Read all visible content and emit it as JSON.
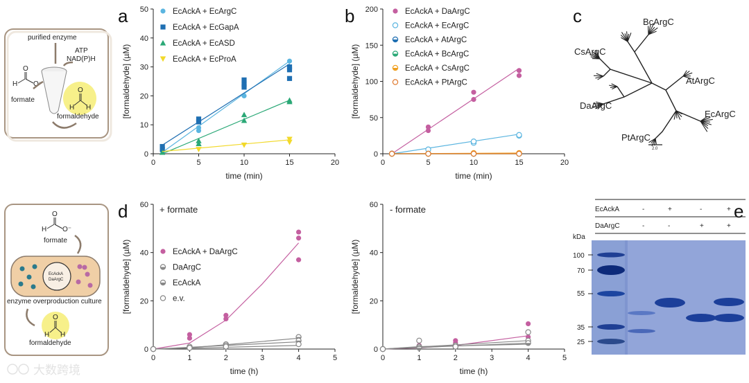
{
  "panels": {
    "a": {
      "letter": "a",
      "ylabel": "[formaldehyde] (µM)",
      "xlabel": "time (min)",
      "xticks": [
        "0",
        "5",
        "10",
        "15",
        "20"
      ],
      "yticks": [
        "0",
        "10",
        "20",
        "30",
        "40",
        "50"
      ]
    },
    "b": {
      "letter": "b",
      "ylabel": "[formaldehyde] (µM)",
      "xlabel": "time (min)",
      "xticks": [
        "0",
        "5",
        "10",
        "15",
        "20"
      ],
      "yticks": [
        "0",
        "50",
        "100",
        "150",
        "200"
      ]
    },
    "c": {
      "letter": "c",
      "labels": [
        "BcArgC",
        "CsArgC",
        "AtArgC",
        "DaArgC",
        "EcArgC",
        "PtArgC"
      ],
      "scale": "2.0"
    },
    "d": {
      "letter": "d",
      "ylabel": "[formaldehyde] (µM)",
      "xlabel": "time (h)",
      "xticks": [
        "0",
        "1",
        "2",
        "3",
        "4",
        "5"
      ],
      "yticks": [
        "0",
        "20",
        "40",
        "60"
      ],
      "cond_left": "+ formate",
      "cond_right": "- formate"
    },
    "e": {
      "letter": "e",
      "row1": "EcAckA",
      "row2": "DaArgC",
      "row1_signs": [
        "-",
        "+",
        "-",
        "+"
      ],
      "row2_signs": [
        "-",
        "-",
        "+",
        "+"
      ],
      "kda": "kDa",
      "markers": [
        "100",
        "70",
        "55",
        "35",
        "25"
      ]
    }
  },
  "schematic_top": {
    "purified_enzyme": "purified enzyme",
    "atp": "ATP",
    "nadph": "NAD(P)H",
    "formate": "formate",
    "formaldehyde": "formaldehyde"
  },
  "schematic_bottom": {
    "formate": "formate",
    "culture": "enzyme overproduction culture",
    "formaldehyde": "formaldehyde",
    "plasmid1": "EcAckA",
    "plasmid2": "DaArgC"
  },
  "watermark": "大数跨境",
  "chart_data": [
    {
      "type": "scatter",
      "panel": "a",
      "xlabel": "time (min)",
      "ylabel": "[formaldehyde] (µM)",
      "xlim": [
        0,
        20
      ],
      "ylim": [
        0,
        50
      ],
      "series": [
        {
          "name": "EcAckA + EcArgC",
          "color": "#5bb5e0",
          "marker": "circle",
          "x": [
            1,
            1,
            5,
            5,
            10,
            10,
            15,
            15
          ],
          "y": [
            1,
            2,
            8,
            9,
            20,
            24,
            30,
            32
          ],
          "fit": [
            [
              1,
              0.5
            ],
            [
              15,
              32
            ]
          ]
        },
        {
          "name": "EcAckA + EcGapA",
          "color": "#1f6fb2",
          "marker": "square",
          "x": [
            1,
            1,
            5,
            5,
            10,
            10,
            10,
            15,
            15,
            15
          ],
          "y": [
            1.5,
            2.5,
            11,
            12,
            23,
            24,
            25.5,
            26,
            29,
            30
          ],
          "fit": [
            [
              1,
              3
            ],
            [
              15,
              31
            ]
          ]
        },
        {
          "name": "EcAckA + EcASD",
          "color": "#2aa876",
          "marker": "triangle-up",
          "x": [
            1,
            5,
            5,
            10,
            10,
            15,
            15
          ],
          "y": [
            0.5,
            3.5,
            4.5,
            11.5,
            13.5,
            18,
            18.5
          ],
          "fit": [
            [
              1,
              0
            ],
            [
              15,
              18.5
            ]
          ]
        },
        {
          "name": "EcAckA + EcProA",
          "color": "#f2d92a",
          "marker": "triangle-down",
          "x": [
            5,
            10,
            15,
            15
          ],
          "y": [
            1.5,
            3,
            4,
            5
          ],
          "fit": [
            [
              1,
              0.8
            ],
            [
              15,
              4.8
            ]
          ]
        }
      ]
    },
    {
      "type": "scatter",
      "panel": "b",
      "xlabel": "time (min)",
      "ylabel": "[formaldehyde] (µM)",
      "xlim": [
        0,
        20
      ],
      "ylim": [
        0,
        200
      ],
      "series": [
        {
          "name": "EcAckA + DaArgC",
          "color": "#c45fa0",
          "marker": "circle-filled",
          "x": [
            1,
            5,
            5,
            10,
            10,
            15,
            15
          ],
          "y": [
            1,
            32,
            37,
            75,
            85,
            108,
            115
          ],
          "fit": [
            [
              1,
              0
            ],
            [
              15,
              118
            ]
          ]
        },
        {
          "name": "EcAckA + EcArgC",
          "color": "#5bb5e0",
          "marker": "circle-open",
          "x": [
            1,
            5,
            10,
            10,
            15,
            15
          ],
          "y": [
            0,
            6,
            15,
            17,
            25,
            26
          ],
          "fit": [
            [
              1,
              0
            ],
            [
              15,
              27
            ]
          ]
        },
        {
          "name": "EcAckA + AtArgC",
          "color": "#1f6fb2",
          "marker": "circle-half",
          "x": [
            1,
            5,
            10,
            15
          ],
          "y": [
            0,
            0,
            0,
            0
          ],
          "fit": [
            [
              1,
              0
            ],
            [
              15,
              0
            ]
          ]
        },
        {
          "name": "EcAckA + BcArgC",
          "color": "#2aa876",
          "marker": "circle-half",
          "x": [
            1,
            5,
            10,
            15
          ],
          "y": [
            0,
            0,
            0,
            0
          ],
          "fit": [
            [
              1,
              0
            ],
            [
              15,
              0
            ]
          ]
        },
        {
          "name": "EcAckA + CsArgC",
          "color": "#f0a020",
          "marker": "circle-half",
          "x": [
            1,
            5,
            10,
            15
          ],
          "y": [
            0,
            0,
            1,
            1
          ],
          "fit": [
            [
              1,
              0
            ],
            [
              15,
              1
            ]
          ]
        },
        {
          "name": "EcAckA + PtArgC",
          "color": "#e07a30",
          "marker": "circle-open",
          "x": [
            1,
            5,
            10,
            15
          ],
          "y": [
            0,
            0,
            0,
            0
          ],
          "fit": [
            [
              1,
              0
            ],
            [
              15,
              0
            ]
          ]
        }
      ]
    },
    {
      "type": "scatter",
      "panel": "d-left",
      "title": "+ formate",
      "xlabel": "time (h)",
      "ylabel": "[formaldehyde] (µM)",
      "xlim": [
        0,
        5
      ],
      "ylim": [
        0,
        60
      ],
      "series": [
        {
          "name": "EcAckA + DaArgC",
          "color": "#c45fa0",
          "marker": "circle-filled",
          "x": [
            0,
            1,
            1,
            2,
            2,
            4,
            4,
            4
          ],
          "y": [
            0,
            4.5,
            6,
            12.5,
            14,
            37,
            46,
            48.5
          ],
          "fit": [
            [
              0,
              0
            ],
            [
              1,
              2.5
            ],
            [
              2,
              12
            ],
            [
              3,
              27
            ],
            [
              4,
              44
            ]
          ]
        },
        {
          "name": "DaArgC",
          "color": "#888888",
          "marker": "circle-half",
          "x": [
            0,
            1,
            2,
            4
          ],
          "y": [
            0,
            1,
            2,
            5
          ],
          "fit": [
            [
              0,
              0
            ],
            [
              1,
              0.5
            ],
            [
              2,
              1.8
            ],
            [
              4,
              4.5
            ]
          ]
        },
        {
          "name": "EcAckA",
          "color": "#888888",
          "marker": "circle-half",
          "x": [
            0,
            1,
            2,
            4
          ],
          "y": [
            0,
            0.5,
            1.5,
            3.5
          ],
          "fit": [
            [
              0,
              0
            ],
            [
              4,
              3
            ]
          ]
        },
        {
          "name": "e.v.",
          "color": "#888888",
          "marker": "circle-open",
          "x": [
            0,
            1,
            2,
            4
          ],
          "y": [
            0,
            0.5,
            1,
            2
          ],
          "fit": [
            [
              0,
              0
            ],
            [
              4,
              1.5
            ]
          ]
        }
      ]
    },
    {
      "type": "scatter",
      "panel": "d-right",
      "title": "- formate",
      "xlabel": "time (h)",
      "ylabel": "[formaldehyde] (µM)",
      "xlim": [
        0,
        5
      ],
      "ylim": [
        0,
        60
      ],
      "series": [
        {
          "name": "EcAckA + DaArgC",
          "color": "#c45fa0",
          "marker": "circle-filled",
          "x": [
            0,
            1,
            1,
            2,
            2,
            4,
            4
          ],
          "y": [
            0,
            1,
            1.5,
            2.5,
            3.5,
            5,
            10.5
          ],
          "fit": [
            [
              0,
              0
            ],
            [
              1,
              0.5
            ],
            [
              2,
              1.5
            ],
            [
              4,
              5.5
            ]
          ]
        },
        {
          "name": "DaArgC",
          "color": "#888888",
          "marker": "circle-half",
          "x": [
            0,
            1,
            2,
            4
          ],
          "y": [
            0,
            1,
            1.5,
            3.5
          ],
          "fit": [
            [
              0,
              0
            ],
            [
              4,
              3.5
            ]
          ]
        },
        {
          "name": "EcAckA",
          "color": "#888888",
          "marker": "circle-half",
          "x": [
            0,
            1,
            2,
            4
          ],
          "y": [
            0,
            0.5,
            1,
            2.5
          ],
          "fit": [
            [
              0,
              0
            ],
            [
              4,
              2.5
            ]
          ]
        },
        {
          "name": "e.v.",
          "color": "#888888",
          "marker": "circle-open",
          "x": [
            0,
            1,
            2,
            4
          ],
          "y": [
            0,
            3.5,
            1,
            7
          ],
          "fit": [
            [
              0,
              0
            ],
            [
              1,
              1
            ],
            [
              4,
              2
            ]
          ]
        }
      ]
    }
  ]
}
